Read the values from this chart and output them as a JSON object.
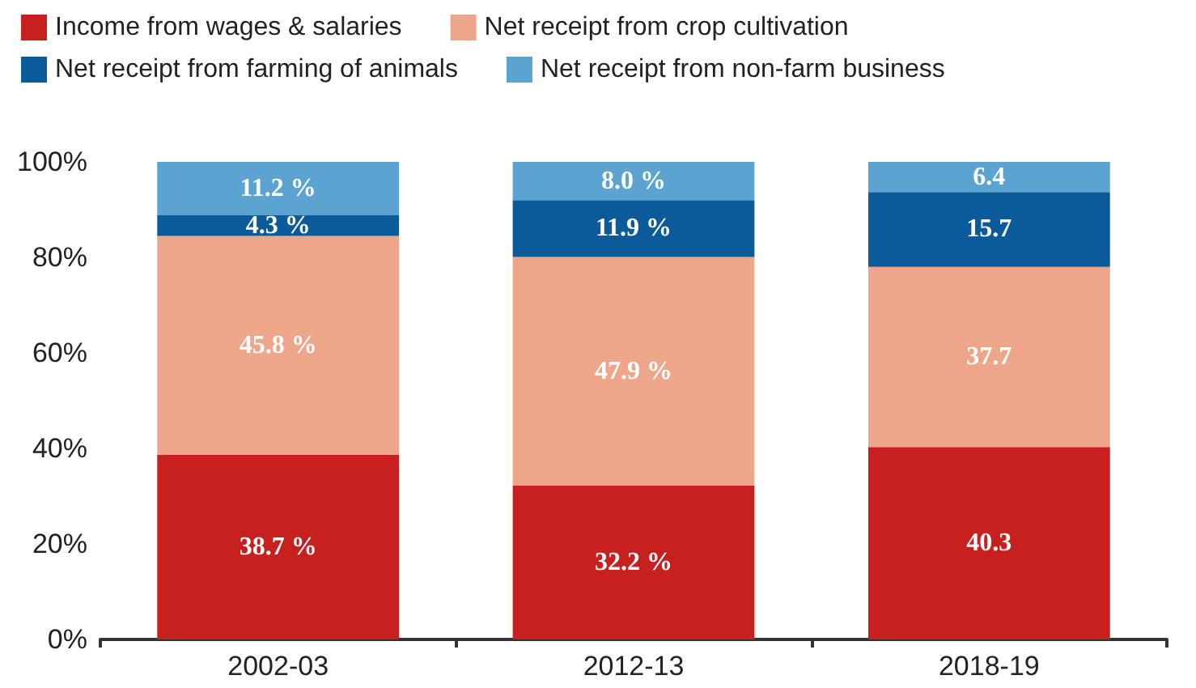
{
  "chart_data": {
    "type": "bar",
    "stacked": true,
    "categories": [
      "2002-03",
      "2012-13",
      "2018-19"
    ],
    "series": [
      {
        "name": "Income from wages & salaries",
        "color": "#c8201e",
        "values": [
          38.7,
          32.2,
          40.3
        ],
        "value_labels": [
          "38.7 %",
          "32.2 %",
          "40.3"
        ]
      },
      {
        "name": "Net receipt from crop cultivation",
        "color": "#eea68a",
        "values": [
          45.8,
          47.9,
          37.7
        ],
        "value_labels": [
          "45.8 %",
          "47.9 %",
          "37.7"
        ]
      },
      {
        "name": "Net receipt from farming of animals",
        "color": "#0b5a99",
        "values": [
          4.3,
          11.9,
          15.7
        ],
        "value_labels": [
          "4.3 %",
          "11.9 %",
          "15.7"
        ]
      },
      {
        "name": "Net receipt from non-farm business",
        "color": "#5ba3d0",
        "values": [
          11.2,
          8.0,
          6.4
        ],
        "value_labels": [
          "11.2 %",
          "8.0 %",
          "6.4"
        ]
      }
    ],
    "ylim": [
      0,
      100
    ],
    "yticks": [
      {
        "value": 0,
        "label": "0%"
      },
      {
        "value": 20,
        "label": "20%"
      },
      {
        "value": 40,
        "label": "40%"
      },
      {
        "value": 60,
        "label": "60%"
      },
      {
        "value": 80,
        "label": "80%"
      },
      {
        "value": 100,
        "label": "100%"
      }
    ],
    "grid": false,
    "legend": "top"
  }
}
